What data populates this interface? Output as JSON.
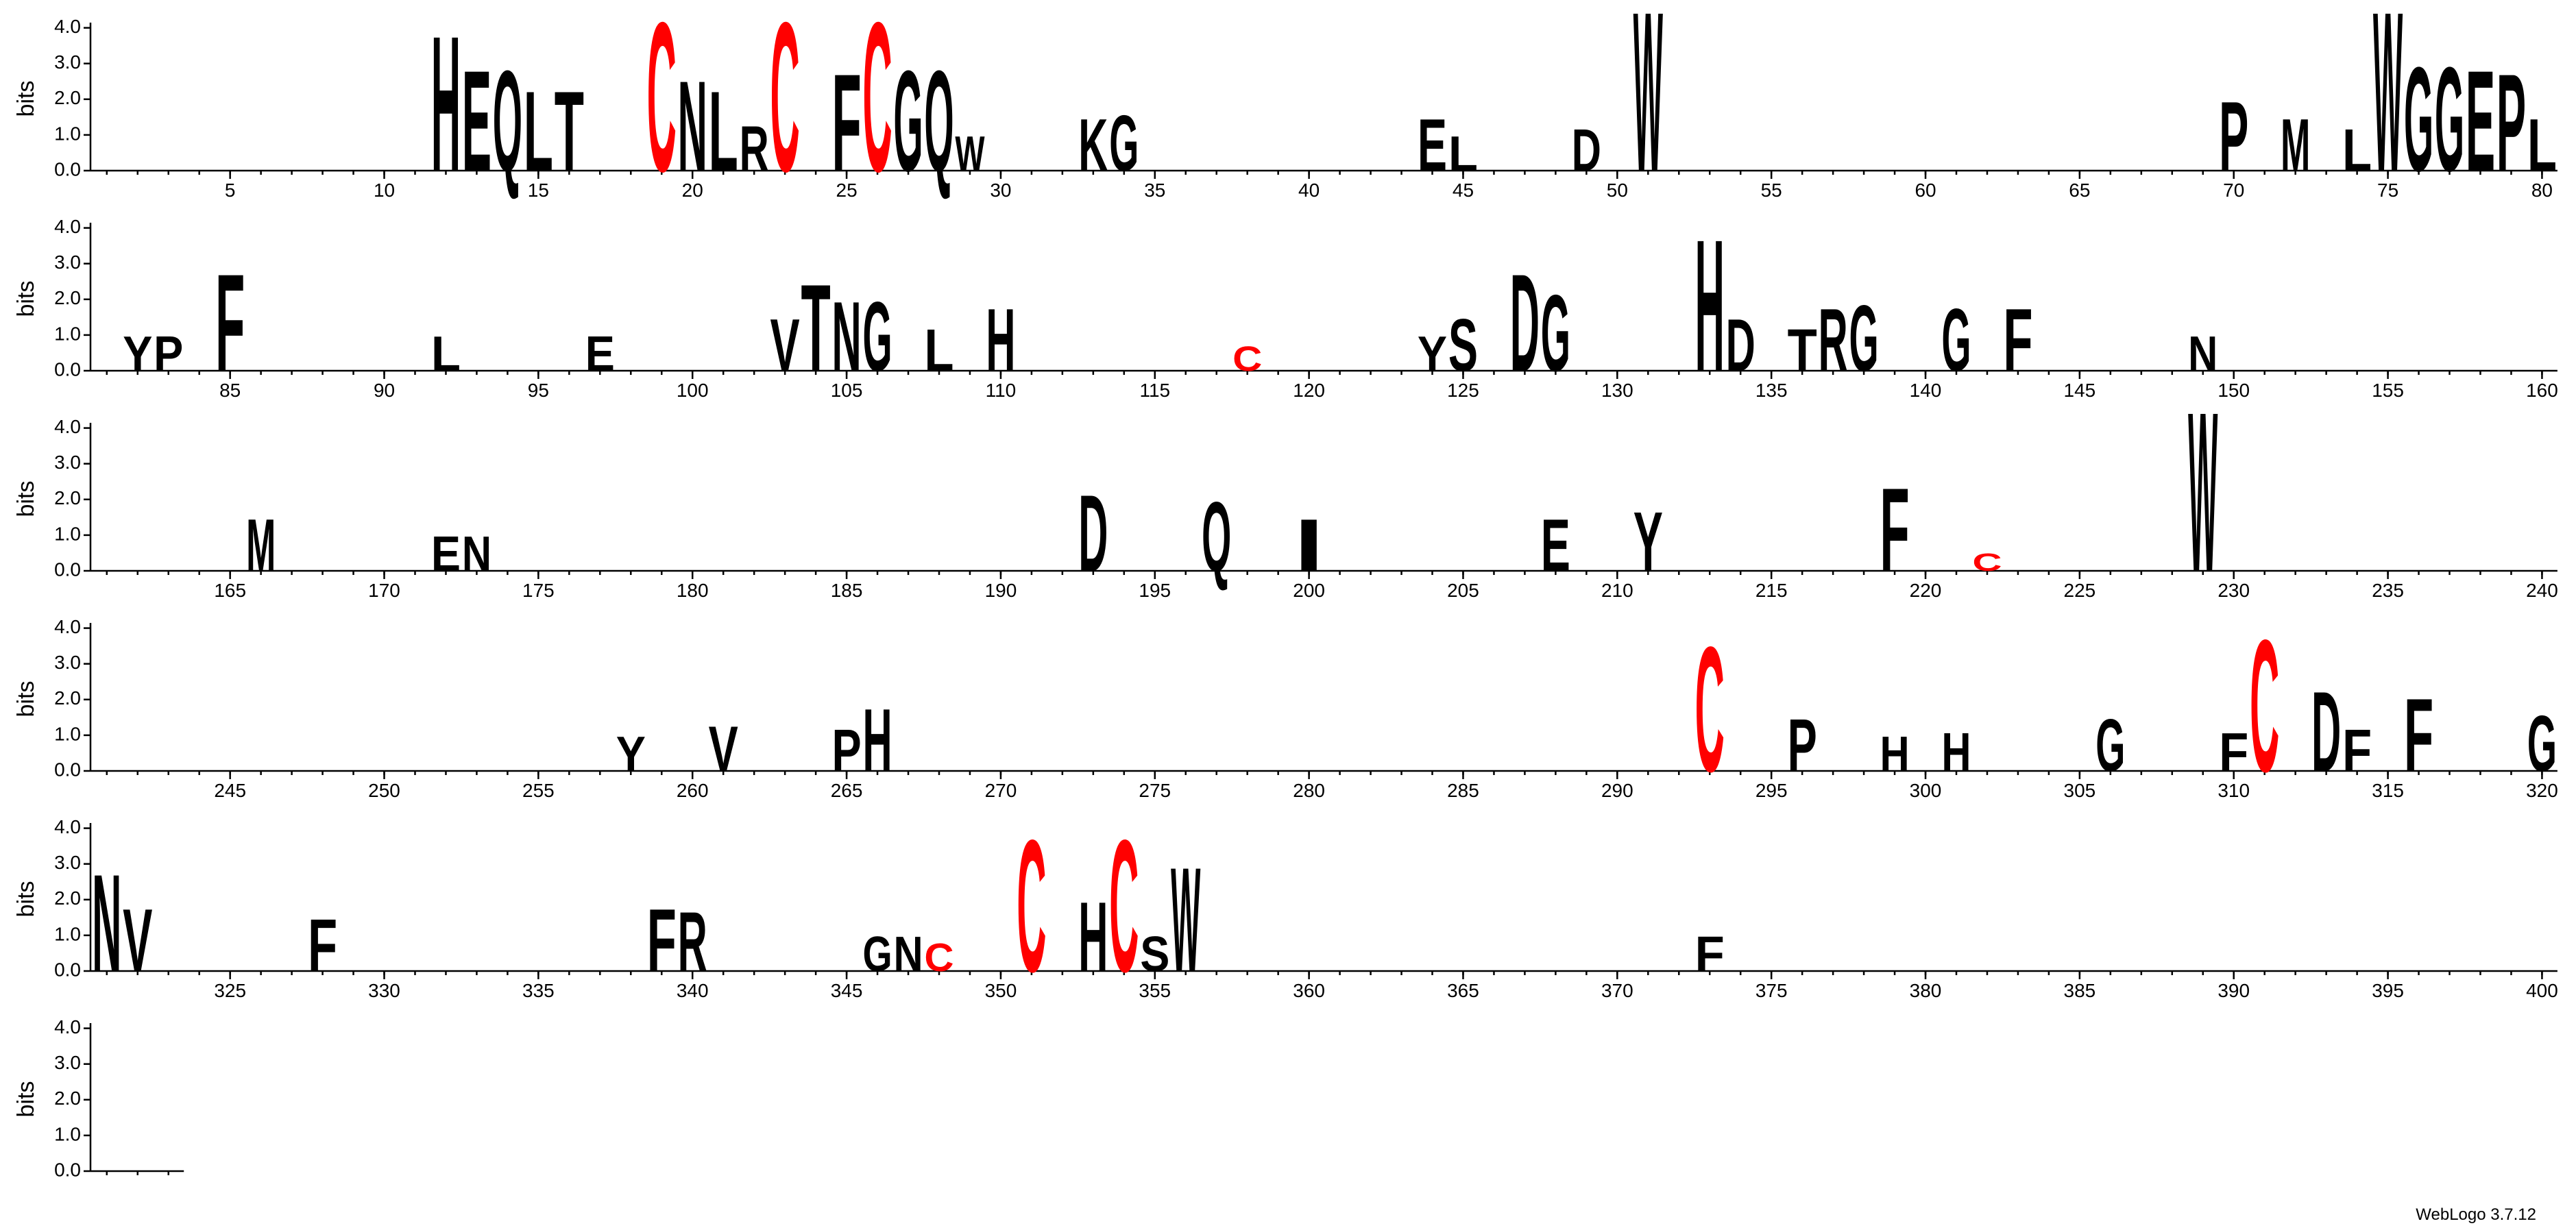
{
  "chart_data": {
    "type": "logo",
    "ylabel": "bits",
    "footer": "WebLogo 3.7.12",
    "xlim": [
      1,
      403
    ],
    "ylim": [
      0,
      4.3
    ],
    "yticks": [
      {
        "value": 0,
        "label": "0.0"
      },
      {
        "value": 1,
        "label": "1.0"
      },
      {
        "value": 2,
        "label": "2.0"
      },
      {
        "value": 3,
        "label": "3.0"
      },
      {
        "value": 4,
        "label": "4.0"
      }
    ],
    "xticks": [
      5,
      10,
      15,
      20,
      25,
      30,
      35,
      40,
      45,
      50,
      55,
      60,
      65,
      70,
      75,
      80,
      85,
      90,
      95,
      100,
      105,
      110,
      115,
      120,
      125,
      130,
      135,
      140,
      145,
      150,
      155,
      160,
      165,
      170,
      175,
      180,
      185,
      190,
      195,
      200,
      205,
      210,
      215,
      220,
      225,
      230,
      235,
      240,
      245,
      250,
      255,
      260,
      265,
      270,
      275,
      280,
      285,
      290,
      295,
      300,
      305,
      310,
      315,
      320,
      325,
      330,
      335,
      340,
      345,
      350,
      355,
      360,
      365,
      370,
      375,
      380,
      385,
      390,
      395,
      400
    ],
    "x": [
      12,
      13,
      14,
      15,
      16,
      19,
      20,
      21,
      22,
      23,
      25,
      26,
      27,
      28,
      29,
      33,
      34,
      44,
      45,
      49,
      51,
      70,
      72,
      74,
      75,
      76,
      77,
      78,
      79,
      80,
      82,
      83,
      85,
      92,
      97,
      103,
      104,
      105,
      106,
      108,
      110,
      118,
      124,
      125,
      127,
      128,
      133,
      134,
      136,
      137,
      138,
      141,
      143,
      149,
      166,
      172,
      173,
      193,
      197,
      200,
      208,
      211,
      219,
      222,
      229,
      258,
      261,
      265,
      266,
      293,
      296,
      299,
      301,
      306,
      310,
      311,
      313,
      314,
      316,
      320,
      321,
      322,
      328,
      339,
      340,
      346,
      347,
      348,
      351,
      353,
      354,
      355,
      356,
      373
    ],
    "letters": [
      "H",
      "E",
      "Q",
      "L",
      "T",
      "C",
      "N",
      "L",
      "R",
      "C",
      "F",
      "C",
      "G",
      "Q",
      "W",
      "K",
      "G",
      "E",
      "L",
      "D",
      "W",
      "P",
      "M",
      "L",
      "W",
      "G",
      "G",
      "E",
      "P",
      "L",
      "Y",
      "P",
      "F",
      "L",
      "E",
      "V",
      "T",
      "N",
      "G",
      "L",
      "H",
      "C",
      "Y",
      "S",
      "D",
      "G",
      "H",
      "D",
      "T",
      "R",
      "G",
      "G",
      "F",
      "N",
      "M",
      "E",
      "N",
      "D",
      "Q",
      "I",
      "E",
      "Y",
      "F",
      "C",
      "W",
      "Y",
      "V",
      "P",
      "H",
      "C",
      "P",
      "H",
      "H",
      "G",
      "F",
      "C",
      "D",
      "F",
      "F",
      "G",
      "N",
      "V",
      "F",
      "F",
      "R",
      "G",
      "N",
      "C",
      "C",
      "H",
      "C",
      "S",
      "W",
      "F"
    ],
    "values": [
      3.9,
      2.9,
      2.9,
      2.3,
      2.3,
      4.3,
      2.6,
      2.3,
      1.3,
      4.3,
      2.8,
      4.3,
      2.9,
      2.9,
      1.0,
      1.5,
      1.6,
      1.5,
      1.0,
      1.2,
      4.6,
      2.0,
      1.5,
      1.2,
      4.6,
      3.0,
      3.0,
      2.9,
      2.8,
      1.5,
      1.0,
      1.0,
      2.8,
      1.0,
      1.0,
      1.5,
      2.5,
      2.0,
      2.0,
      1.2,
      1.8,
      0.7,
      1.0,
      1.5,
      2.8,
      2.2,
      3.8,
      1.5,
      1.2,
      1.8,
      1.9,
      1.8,
      1.8,
      1.0,
      1.5,
      1.0,
      1.0,
      2.2,
      2.0,
      1.5,
      1.5,
      1.7,
      2.4,
      0.5,
      4.6,
      1.0,
      1.3,
      1.2,
      1.8,
      3.6,
      1.5,
      1.0,
      1.1,
      1.5,
      1.1,
      3.8,
      2.3,
      1.2,
      2.1,
      1.6,
      2.8,
      1.8,
      1.5,
      1.8,
      1.7,
      1.0,
      1.0,
      0.8,
      3.8,
      2.0,
      3.8,
      1.0,
      3.0,
      1.0
    ],
    "colors": [
      "#000000",
      "#000000",
      "#000000",
      "#000000",
      "#000000",
      "#ff0000",
      "#000000",
      "#000000",
      "#000000",
      "#ff0000",
      "#000000",
      "#ff0000",
      "#000000",
      "#000000",
      "#000000",
      "#000000",
      "#000000",
      "#000000",
      "#000000",
      "#000000",
      "#000000",
      "#000000",
      "#000000",
      "#000000",
      "#000000",
      "#000000",
      "#000000",
      "#000000",
      "#000000",
      "#000000",
      "#000000",
      "#000000",
      "#000000",
      "#000000",
      "#000000",
      "#000000",
      "#000000",
      "#000000",
      "#000000",
      "#000000",
      "#000000",
      "#ff0000",
      "#000000",
      "#000000",
      "#000000",
      "#000000",
      "#000000",
      "#000000",
      "#000000",
      "#000000",
      "#000000",
      "#000000",
      "#000000",
      "#000000",
      "#000000",
      "#000000",
      "#000000",
      "#000000",
      "#000000",
      "#000000",
      "#000000",
      "#000000",
      "#000000",
      "#ff0000",
      "#000000",
      "#000000",
      "#000000",
      "#000000",
      "#000000",
      "#ff0000",
      "#000000",
      "#000000",
      "#000000",
      "#000000",
      "#000000",
      "#ff0000",
      "#000000",
      "#000000",
      "#000000",
      "#000000",
      "#000000",
      "#000000",
      "#000000",
      "#000000",
      "#000000",
      "#000000",
      "#000000",
      "#ff0000",
      "#ff0000",
      "#000000",
      "#ff0000",
      "#000000",
      "#000000",
      "#000000"
    ]
  }
}
